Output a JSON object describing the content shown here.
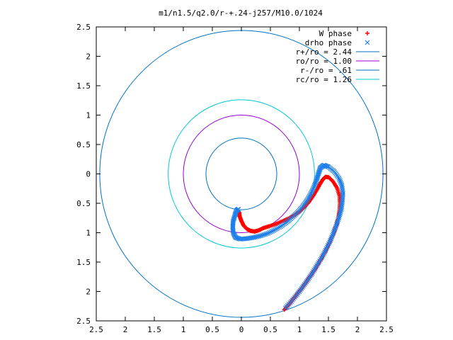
{
  "chart_data": {
    "type": "scatter",
    "title": "m1/n1.5/q2.0/r-+.24-j257/M10.0/1024",
    "xlim": [
      -2.5,
      2.5
    ],
    "ylim": [
      -2.5,
      2.5
    ],
    "x_ticks": [
      "2.5",
      "2",
      "1.5",
      "1",
      "0.5",
      "0",
      "0.5",
      "1",
      "1.5",
      "2",
      "2.5"
    ],
    "x_tick_values": [
      -2.5,
      -2,
      -1.5,
      -1,
      -0.5,
      0,
      0.5,
      1,
      1.5,
      2,
      2.5
    ],
    "y_ticks": [
      "2.5",
      "2",
      "1.5",
      "1",
      "0.5",
      "0",
      "0.5",
      "1",
      "1.5",
      "2",
      "2.5"
    ],
    "y_tick_values": [
      2.5,
      2,
      1.5,
      1,
      0.5,
      0,
      -0.5,
      -1,
      -1.5,
      -2,
      -2.5
    ],
    "grid": false,
    "legend_position": "top-right",
    "series": [
      {
        "name": "W phase",
        "kind": "points",
        "marker": "+",
        "color": "#ff0000",
        "points": [
          [
            0.74,
            -2.31
          ],
          [
            0.82,
            -2.22
          ],
          [
            0.9,
            -2.12
          ],
          [
            0.98,
            -2.02
          ],
          [
            1.06,
            -1.92
          ],
          [
            1.13,
            -1.82
          ],
          [
            1.2,
            -1.72
          ],
          [
            1.27,
            -1.62
          ],
          [
            1.33,
            -1.52
          ],
          [
            1.39,
            -1.42
          ],
          [
            1.45,
            -1.31
          ],
          [
            1.5,
            -1.21
          ],
          [
            1.55,
            -1.1
          ],
          [
            1.6,
            -0.98
          ],
          [
            1.64,
            -0.87
          ],
          [
            1.67,
            -0.75
          ],
          [
            1.69,
            -0.63
          ],
          [
            1.7,
            -0.5
          ],
          [
            1.69,
            -0.37
          ],
          [
            1.65,
            -0.24
          ],
          [
            1.58,
            -0.13
          ],
          [
            1.51,
            -0.06
          ],
          [
            1.45,
            -0.05
          ],
          [
            1.4,
            -0.1
          ],
          [
            1.35,
            -0.18
          ],
          [
            1.3,
            -0.27
          ],
          [
            1.24,
            -0.37
          ],
          [
            1.17,
            -0.47
          ],
          [
            1.1,
            -0.55
          ],
          [
            1.02,
            -0.63
          ],
          [
            0.93,
            -0.69
          ],
          [
            0.83,
            -0.75
          ],
          [
            0.72,
            -0.8
          ],
          [
            0.6,
            -0.85
          ],
          [
            0.48,
            -0.89
          ],
          [
            0.38,
            -0.92
          ],
          [
            0.3,
            -0.96
          ],
          [
            0.23,
            -0.98
          ],
          [
            0.16,
            -0.97
          ],
          [
            0.1,
            -0.94
          ],
          [
            0.04,
            -0.88
          ],
          [
            0.0,
            -0.8
          ],
          [
            -0.03,
            -0.72
          ],
          [
            -0.04,
            -0.65
          ]
        ]
      },
      {
        "name": "drho phase",
        "kind": "points",
        "marker": "x",
        "color": "#1e7fea",
        "points": [
          [
            0.76,
            -2.28
          ],
          [
            0.86,
            -2.17
          ],
          [
            0.96,
            -2.05
          ],
          [
            1.05,
            -1.93
          ],
          [
            1.14,
            -1.81
          ],
          [
            1.22,
            -1.69
          ],
          [
            1.3,
            -1.56
          ],
          [
            1.38,
            -1.43
          ],
          [
            1.45,
            -1.3
          ],
          [
            1.52,
            -1.16
          ],
          [
            1.58,
            -1.02
          ],
          [
            1.63,
            -0.89
          ],
          [
            1.68,
            -0.75
          ],
          [
            1.72,
            -0.61
          ],
          [
            1.74,
            -0.47
          ],
          [
            1.75,
            -0.33
          ],
          [
            1.73,
            -0.19
          ],
          [
            1.68,
            -0.07
          ],
          [
            1.6,
            0.04
          ],
          [
            1.5,
            0.12
          ],
          [
            1.42,
            0.15
          ],
          [
            1.36,
            0.1
          ],
          [
            1.33,
            0.01
          ],
          [
            1.3,
            -0.09
          ],
          [
            1.26,
            -0.2
          ],
          [
            1.21,
            -0.31
          ],
          [
            1.15,
            -0.42
          ],
          [
            1.08,
            -0.52
          ],
          [
            1.0,
            -0.62
          ],
          [
            0.91,
            -0.71
          ],
          [
            0.81,
            -0.8
          ],
          [
            0.7,
            -0.88
          ],
          [
            0.58,
            -0.95
          ],
          [
            0.46,
            -1.01
          ],
          [
            0.34,
            -1.05
          ],
          [
            0.22,
            -1.08
          ],
          [
            0.1,
            -1.1
          ],
          [
            -0.02,
            -1.11
          ],
          [
            -0.1,
            -1.08
          ],
          [
            -0.14,
            -1.0
          ],
          [
            -0.15,
            -0.9
          ],
          [
            -0.14,
            -0.8
          ],
          [
            -0.11,
            -0.7
          ],
          [
            -0.08,
            -0.62
          ],
          [
            -0.05,
            -0.6
          ]
        ]
      },
      {
        "name": "r+/ro = 2.44",
        "kind": "circle",
        "radius": 2.44,
        "color": "#0072c6"
      },
      {
        "name": "ro/ro = 1.00",
        "kind": "circle",
        "radius": 1.0,
        "color": "#9400d3"
      },
      {
        "name": "r-/ro = .61",
        "kind": "circle",
        "radius": 0.61,
        "color": "#0072c6"
      },
      {
        "name": "rc/ro = 1.26",
        "kind": "circle",
        "radius": 1.26,
        "color": "#00c8d2"
      }
    ]
  }
}
